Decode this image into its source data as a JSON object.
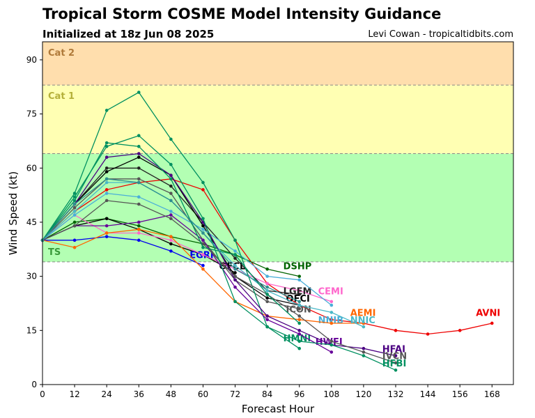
{
  "header": {
    "title": "Tropical Storm COSME Model Intensity Guidance",
    "subtitle": "Initialized at 18z Jun 08 2025",
    "credit": "Levi Cowan - tropicaltidbits.com"
  },
  "chart_data": {
    "type": "line",
    "xlabel": "Forecast Hour",
    "ylabel": "Wind Speed (kt)",
    "xlim": [
      0,
      176
    ],
    "ylim": [
      0,
      95
    ],
    "xticks": [
      0,
      12,
      24,
      36,
      48,
      60,
      72,
      84,
      96,
      108,
      120,
      132,
      144,
      156,
      168
    ],
    "yticks": [
      0,
      15,
      30,
      45,
      60,
      75,
      90
    ],
    "bands": [
      {
        "label": "TS",
        "from": 34,
        "to": 64,
        "color": "#b3ffb3",
        "label_color": "#3a9a3a"
      },
      {
        "label": "Cat 1",
        "from": 64,
        "to": 83,
        "color": "#ffffb3",
        "label_color": "#b5b03a"
      },
      {
        "label": "Cat 2",
        "from": 83,
        "to": 95,
        "color": "#ffdead",
        "label_color": "#b07a3a"
      }
    ],
    "series": [
      {
        "name": "AVNI",
        "color": "#ee0000",
        "x": [
          0,
          12,
          24,
          36,
          48,
          60,
          72,
          84,
          96,
          108,
          120,
          132,
          144,
          156,
          168
        ],
        "y": [
          40,
          48,
          54,
          56,
          57,
          54,
          40,
          28,
          22,
          18,
          17,
          15,
          14,
          15,
          17
        ],
        "label_x": 162,
        "label_y": 19
      },
      {
        "name": "DSHP",
        "color": "#006400",
        "x": [
          0,
          12,
          24,
          36,
          48,
          60,
          72,
          84,
          96
        ],
        "y": [
          40,
          45,
          46,
          44,
          41,
          39,
          36,
          32,
          30
        ],
        "label_x": 90,
        "label_y": 32
      },
      {
        "name": "OFCL",
        "color": "#000000",
        "x": [
          0,
          12,
          24,
          36,
          48,
          60,
          72
        ],
        "y": [
          40,
          44,
          46,
          43,
          39,
          36,
          31
        ],
        "label_x": 66,
        "label_y": 32
      },
      {
        "name": "EGRI",
        "color": "#0000ee",
        "x": [
          0,
          12,
          24,
          36,
          48,
          60
        ],
        "y": [
          40,
          40,
          41,
          40,
          37,
          33
        ],
        "label_x": 55,
        "label_y": 35
      },
      {
        "name": "CEMI",
        "color": "#ff66cc",
        "x": [
          0,
          12,
          24,
          36,
          48,
          60,
          72,
          84,
          96,
          108
        ],
        "y": [
          40,
          47,
          42,
          42,
          40,
          36,
          32,
          28,
          26,
          23
        ],
        "label_x": 103,
        "label_y": 25
      },
      {
        "name": "LGEM",
        "color": "#222222",
        "x": [
          0,
          12,
          24,
          36,
          48,
          60,
          72,
          84,
          96
        ],
        "y": [
          40,
          50,
          60,
          60,
          55,
          45,
          35,
          26,
          25
        ],
        "label_x": 90,
        "label_y": 25
      },
      {
        "name": "OFCI",
        "color": "#000000",
        "x": [
          0,
          12,
          24,
          36,
          48,
          60,
          72,
          84,
          96
        ],
        "y": [
          40,
          50,
          59,
          63,
          58,
          44,
          30,
          24,
          22
        ],
        "label_x": 91,
        "label_y": 23
      },
      {
        "name": "ICON",
        "color": "#555555",
        "x": [
          0,
          12,
          24,
          36,
          48,
          60,
          72,
          84,
          96
        ],
        "y": [
          40,
          49,
          57,
          57,
          53,
          40,
          29,
          23,
          21
        ],
        "label_x": 91,
        "label_y": 20
      },
      {
        "name": "NNIB",
        "color": "#4aaed8",
        "x": [
          0,
          12,
          24,
          36,
          48,
          60,
          72,
          84,
          96,
          108
        ],
        "y": [
          40,
          47,
          53,
          52,
          48,
          43,
          37,
          30,
          29,
          22
        ],
        "label_x": 103,
        "label_y": 17
      },
      {
        "name": "AEMI",
        "color": "#ff6600",
        "x": [
          0,
          12,
          24,
          36,
          48,
          60,
          72,
          84,
          96,
          108,
          120
        ],
        "y": [
          40,
          38,
          42,
          43,
          41,
          32,
          23,
          19,
          18,
          17,
          17
        ],
        "label_x": 115,
        "label_y": 19
      },
      {
        "name": "NNIC",
        "color": "#4ab8c8",
        "x": [
          0,
          12,
          24,
          36,
          48,
          60,
          72,
          84,
          96,
          108,
          120
        ],
        "y": [
          40,
          48,
          56,
          56,
          51,
          42,
          33,
          26,
          22,
          20,
          16
        ],
        "label_x": 115,
        "label_y": 17
      },
      {
        "name": "HMNI",
        "color": "#009060",
        "x": [
          0,
          12,
          24,
          36,
          48,
          60,
          72,
          84,
          96
        ],
        "y": [
          40,
          53,
          76,
          81,
          68,
          56,
          40,
          16,
          10
        ],
        "label_x": 90,
        "label_y": 12
      },
      {
        "name": "HWFI",
        "color": "#660099",
        "x": [
          0,
          12,
          24,
          36,
          48,
          60,
          72,
          84,
          96,
          108
        ],
        "y": [
          40,
          44,
          44,
          45,
          47,
          40,
          27,
          18,
          14,
          9
        ],
        "label_x": 102,
        "label_y": 11
      },
      {
        "name": "HFAI",
        "color": "#4b0082",
        "x": [
          0,
          12,
          24,
          36,
          48,
          60,
          72,
          84,
          96,
          108,
          120,
          132
        ],
        "y": [
          40,
          50,
          63,
          64,
          58,
          45,
          29,
          19,
          15,
          11,
          10,
          8
        ],
        "label_x": 127,
        "label_y": 9
      },
      {
        "name": "IVCN",
        "color": "#555555",
        "x": [
          0,
          12,
          24,
          36,
          48,
          60,
          72,
          84,
          96,
          108,
          120,
          132
        ],
        "y": [
          40,
          44,
          51,
          50,
          46,
          39,
          30,
          25,
          19,
          12,
          9,
          6
        ],
        "label_x": 127,
        "label_y": 7
      },
      {
        "name": "HFBI",
        "color": "#009060",
        "x": [
          0,
          12,
          24,
          36,
          48,
          60,
          72,
          84,
          96,
          108,
          120,
          132
        ],
        "y": [
          40,
          52,
          66,
          69,
          61,
          46,
          23,
          16,
          12,
          11,
          8,
          4
        ],
        "label_x": 127,
        "label_y": 5
      },
      {
        "name": "",
        "color": "#009060",
        "x": [
          0,
          12,
          24,
          36,
          48,
          60,
          72,
          84,
          96
        ],
        "y": [
          40,
          51,
          67,
          66,
          57,
          38,
          36,
          25,
          17
        ],
        "label_x": null,
        "label_y": null
      },
      {
        "name": "",
        "color": "#2f8f8f",
        "x": [
          0,
          12,
          24,
          36,
          48,
          60,
          72,
          84,
          96
        ],
        "y": [
          40,
          50,
          57,
          56,
          51,
          42,
          32,
          27,
          23
        ],
        "label_x": null,
        "label_y": null
      }
    ]
  }
}
